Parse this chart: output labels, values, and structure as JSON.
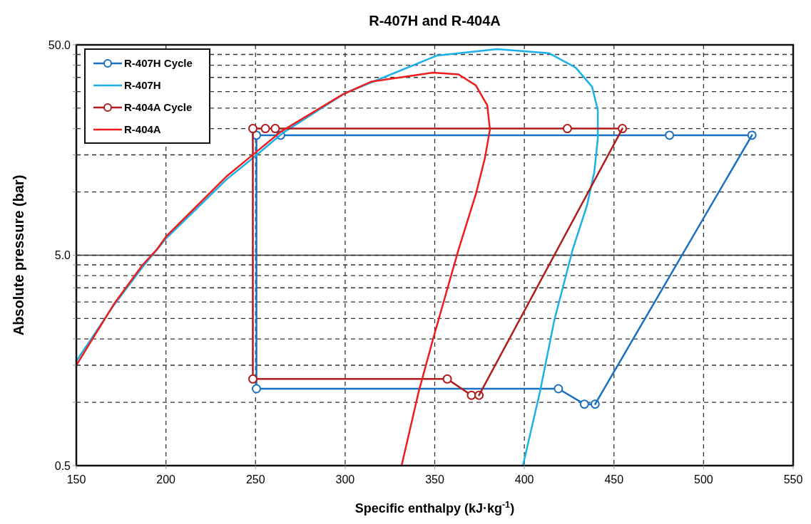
{
  "chart_data": {
    "type": "line",
    "title": "R-407H and R-404A",
    "xlabel": "Specific enthalpy (kJ·kg$^{-1}$)",
    "ylabel": "Absolute pressure (bar)",
    "log": "y",
    "grid": true,
    "legend": "top left",
    "xlim": [
      150,
      550
    ],
    "xticks": [
      150,
      200,
      250,
      300,
      350,
      400,
      450,
      500,
      550
    ],
    "ylim": [
      0.5,
      50
    ],
    "ref_lines": [
      {
        "axis": "y",
        "value": 5,
        "color": "#333333",
        "line_style": "solid"
      }
    ],
    "yticks": [
      0.5,
      {
        "value": 1,
        "label": null
      },
      {
        "value": 1.5,
        "label": null
      },
      {
        "value": 2,
        "label": null
      },
      {
        "value": 2.5,
        "label": null
      },
      {
        "value": 3,
        "label": null
      },
      {
        "value": 3.5,
        "label": null
      },
      {
        "value": 4,
        "label": null
      },
      {
        "value": 4.5,
        "label": null
      },
      {
        "value": 5,
        "label": "5.0"
      },
      {
        "value": 10,
        "label": null
      },
      {
        "value": 15,
        "label": null
      },
      {
        "value": 20,
        "label": null
      },
      {
        "value": 25,
        "label": null
      },
      {
        "value": 30,
        "label": null
      },
      {
        "value": 35,
        "label": null
      },
      {
        "value": 40,
        "label": null
      },
      {
        "value": 45,
        "label": null
      },
      {
        "value": 50,
        "label": "50.0"
      }
    ],
    "series": [
      {
        "name": "R-407H Cycle",
        "color": "#1a6fc0",
        "marker": "circle",
        "x": [
          527,
          481,
          264,
          250.5,
          250.5,
          419,
          433.5,
          439.5
        ],
        "values": [
          18.6,
          18.6,
          18.6,
          18.6,
          1.16,
          1.16,
          0.98,
          0.98
        ]
      },
      {
        "color": "#1a6fc0",
        "marker": "none",
        "x": [
          439.5,
          527
        ],
        "values": [
          0.98,
          18.6
        ]
      },
      {
        "name": "R-407H",
        "color": "#1ab0e8",
        "marker": "none",
        "x": [
          150,
          171,
          187,
          200,
          234,
          249,
          265,
          300,
          315.6,
          351.4,
          384.8,
          413.9,
          428.6,
          437.8,
          441,
          441,
          439,
          435,
          427,
          416.7,
          408.7,
          399.2
        ],
        "values": [
          1.57,
          2.9,
          4.4,
          6.0,
          11.5,
          14.6,
          19.0,
          29.5,
          33.4,
          44.5,
          47.7,
          45.6,
          39.0,
          31.6,
          24.4,
          17.9,
          12.4,
          8.66,
          5.33,
          2.45,
          1.12,
          0.5
        ]
      },
      {
        "name": "R-404A Cycle",
        "color": "#b01c1c",
        "marker": "circle",
        "x": [
          454.7,
          424,
          261,
          255.5,
          248.5,
          248.5,
          357,
          370.5,
          374.7
        ],
        "values": [
          20,
          20,
          20,
          20,
          20,
          1.29,
          1.29,
          1.08,
          1.08
        ]
      },
      {
        "color": "#b01c1c",
        "marker": "none",
        "x": [
          374.7,
          454.7
        ],
        "values": [
          1.08,
          20
        ]
      },
      {
        "name": "R-404A",
        "color": "#ee1c1c",
        "marker": "none",
        "x": [
          150,
          171,
          187,
          195,
          200.2,
          233.6,
          248,
          264,
          298.5,
          314.4,
          349,
          363.3,
          372.9,
          379.3,
          380.8,
          378,
          373,
          363.3,
          349,
          341,
          331.5
        ],
        "values": [
          1.5,
          2.93,
          4.5,
          5.33,
          6.15,
          11.8,
          14.9,
          19.3,
          29.0,
          33.4,
          36.9,
          36.2,
          32.1,
          25.8,
          19.8,
          14.5,
          9.8,
          5.33,
          1.99,
          1.12,
          0.5
        ]
      }
    ]
  }
}
